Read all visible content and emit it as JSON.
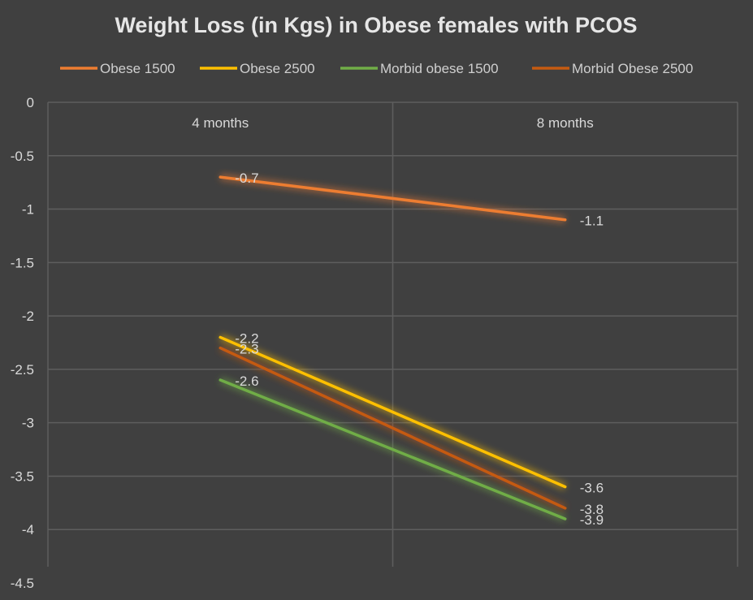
{
  "chart_data": {
    "type": "line",
    "title": "Weight Loss (in Kgs) in Obese females with PCOS",
    "categories": [
      "4 months",
      "8 months"
    ],
    "ylim": [
      -4.5,
      0
    ],
    "yticks": [
      "0",
      "-0.5",
      "-1",
      "-1.5",
      "-2",
      "-2.5",
      "-3",
      "-3.5",
      "-4",
      "-4.5"
    ],
    "ytick_values": [
      0,
      -0.5,
      -1,
      -1.5,
      -2,
      -2.5,
      -3,
      -3.5,
      -4,
      -4.5
    ],
    "legend_position": "top",
    "grid": true,
    "series": [
      {
        "name": "Obese 1500",
        "values": [
          -0.7,
          -1.1
        ],
        "labels": [
          "-0.7",
          "-1.1"
        ],
        "color": "#ED7D31"
      },
      {
        "name": "Obese 2500",
        "values": [
          -2.2,
          -3.6
        ],
        "labels": [
          "-2.2",
          "-3.6"
        ],
        "color": "#FFC000"
      },
      {
        "name": "Morbid obese 1500",
        "values": [
          -2.6,
          -3.9
        ],
        "labels": [
          "-2.6",
          "-3.9"
        ],
        "color": "#70AD47"
      },
      {
        "name": "Morbid Obese 2500",
        "values": [
          -2.3,
          -3.8
        ],
        "labels": [
          "-2.3",
          "-3.8"
        ],
        "color": "#C55A11"
      }
    ]
  }
}
